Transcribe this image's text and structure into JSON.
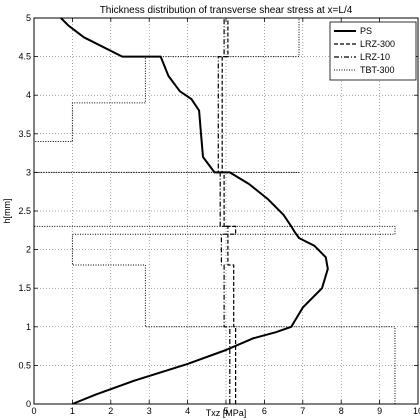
{
  "chart_data": {
    "type": "line",
    "title": "Thickness distribution of transverse shear stress at x=L/4",
    "xlabel": "Txz [MPa]",
    "ylabel": "h[mm]",
    "xlim": [
      0,
      10
    ],
    "ylim": [
      0,
      5
    ],
    "xticks": [
      "0",
      "1",
      "2",
      "3",
      "4",
      "5",
      "6",
      "7",
      "8",
      "9",
      "10"
    ],
    "yticks": [
      "0",
      "0.5",
      "1",
      "1.5",
      "2",
      "2.5",
      "3",
      "3.5",
      "4",
      "4.5",
      "5"
    ],
    "grid": true,
    "legend_position": "top-right",
    "series": [
      {
        "name": "PS",
        "style": "solid",
        "x": [
          1.0,
          1.6,
          2.6,
          4.0,
          5.0,
          5.7,
          6.3,
          6.7,
          7.0,
          7.5,
          7.65,
          7.6,
          7.4,
          7.3,
          7.1,
          6.9,
          6.8,
          6.7,
          6.5,
          6.1,
          5.6,
          5.1,
          4.7,
          4.4,
          4.35,
          4.3,
          4.1,
          3.8,
          3.5,
          3.3,
          2.3,
          1.3,
          0.9,
          0.7
        ],
        "y": [
          0.0,
          0.12,
          0.3,
          0.52,
          0.7,
          0.85,
          0.93,
          1.0,
          1.25,
          1.5,
          1.75,
          1.9,
          2.0,
          2.05,
          2.1,
          2.15,
          2.22,
          2.3,
          2.45,
          2.65,
          2.85,
          3.0,
          3.0,
          3.2,
          3.5,
          3.8,
          3.95,
          4.05,
          4.25,
          4.5,
          4.5,
          4.75,
          4.9,
          5.0
        ]
      },
      {
        "name": "LRZ-300",
        "style": "dashed",
        "x": [
          5.25,
          5.25,
          5.2,
          5.2,
          5.05,
          5.05,
          5.25,
          5.25,
          4.95,
          4.95,
          4.9,
          4.9,
          5.05,
          5.05,
          5.05
        ],
        "y": [
          0.0,
          1.0,
          1.0,
          1.8,
          1.8,
          2.2,
          2.2,
          2.3,
          2.3,
          3.0,
          3.0,
          4.5,
          4.5,
          4.5,
          5.0
        ]
      },
      {
        "name": "LRZ-10",
        "style": "dashdot",
        "x": [
          5.1,
          5.1,
          4.95,
          4.95,
          4.88,
          4.88,
          5.05,
          5.05,
          4.85,
          4.85,
          4.8,
          4.8,
          4.95,
          4.95
        ],
        "y": [
          0.0,
          1.0,
          1.0,
          1.8,
          1.8,
          2.2,
          2.2,
          2.3,
          2.3,
          3.0,
          3.0,
          4.5,
          4.5,
          5.0
        ]
      },
      {
        "name": "TBT-300",
        "style": "dotted",
        "x": [
          9.4,
          9.4,
          2.9,
          2.9,
          1.0,
          1.0,
          9.4,
          9.4,
          0.0,
          0.0,
          6.9,
          6.9,
          0.0,
          0.0,
          1.0,
          1.0,
          2.9,
          2.9,
          6.9,
          6.9
        ],
        "y": [
          0.0,
          1.0,
          1.0,
          1.8,
          1.8,
          2.2,
          2.2,
          2.3,
          2.3,
          3.0,
          3.0,
          3.0,
          3.0,
          3.4,
          3.4,
          3.9,
          3.9,
          4.5,
          4.5,
          5.0
        ]
      }
    ]
  }
}
